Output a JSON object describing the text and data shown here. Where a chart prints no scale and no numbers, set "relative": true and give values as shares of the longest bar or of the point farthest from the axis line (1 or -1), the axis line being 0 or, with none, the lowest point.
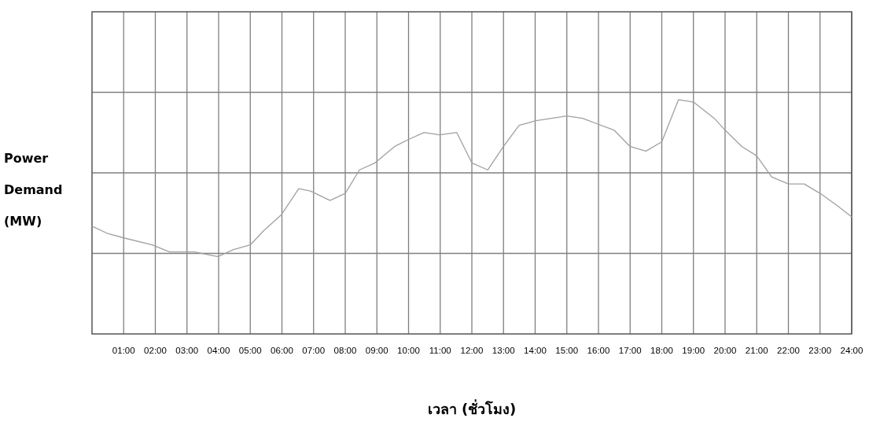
{
  "chart_data": {
    "type": "line",
    "relative": true,
    "xlabel": "เวลา (ชั่วโมง)",
    "ylabel": "Power Demand (MW)",
    "x": [
      0,
      0.47,
      1,
      1.9,
      2.45,
      3.24,
      3.6,
      3.98,
      4.47,
      5,
      5.42,
      5.99,
      6.53,
      6.9,
      7.52,
      8,
      8.45,
      8.94,
      9.56,
      10,
      10.49,
      10.98,
      11.52,
      12,
      12.5,
      13,
      13.49,
      14.02,
      15,
      15.5,
      16.49,
      17,
      17.5,
      18,
      18.53,
      19,
      19.66,
      20,
      20.53,
      21,
      21.47,
      22,
      22.5,
      23,
      23.52,
      24
    ],
    "series": [
      {
        "color": "#a0a0a0",
        "values": [
          0.46,
          0.43,
          0.41,
          0.38,
          0.35,
          0.35,
          0.34,
          0.33,
          0.36,
          0.38,
          0.44,
          0.51,
          0.62,
          0.61,
          0.57,
          0.6,
          0.7,
          0.73,
          0.8,
          0.83,
          0.86,
          0.85,
          0.86,
          0.73,
          0.7,
          0.8,
          0.89,
          0.91,
          0.93,
          0.92,
          0.87,
          0.8,
          0.78,
          0.82,
          1,
          0.99,
          0.92,
          0.87,
          0.8,
          0.76,
          0.67,
          0.64,
          0.64,
          0.6,
          0.55,
          0.5
        ]
      }
    ],
    "xlim": [
      0,
      24
    ],
    "xticks": [
      {
        "value": 1,
        "label": "01:00"
      },
      {
        "value": 2,
        "label": "02:00"
      },
      {
        "value": 3,
        "label": "03:00"
      },
      {
        "value": 4,
        "label": "04:00"
      },
      {
        "value": 5,
        "label": "05:00"
      },
      {
        "value": 6,
        "label": "06:00"
      },
      {
        "value": 7,
        "label": "07:00"
      },
      {
        "value": 8,
        "label": "08:00"
      },
      {
        "value": 9,
        "label": "09:00"
      },
      {
        "value": 10,
        "label": "10:00"
      },
      {
        "value": 11,
        "label": "11:00"
      },
      {
        "value": 12,
        "label": "12:00"
      },
      {
        "value": 13,
        "label": "13:00"
      },
      {
        "value": 14,
        "label": "14:00"
      },
      {
        "value": 15,
        "label": "15:00"
      },
      {
        "value": 16,
        "label": "16:00"
      },
      {
        "value": 17,
        "label": "17:00"
      },
      {
        "value": 18,
        "label": "18:00"
      },
      {
        "value": 19,
        "label": "19:00"
      },
      {
        "value": 20,
        "label": "20:00"
      },
      {
        "value": 21,
        "label": "21:00"
      },
      {
        "value": 22,
        "label": "22:00"
      },
      {
        "value": 23,
        "label": "23:00"
      },
      {
        "value": 24,
        "label": "24:00"
      }
    ],
    "grid": true
  }
}
